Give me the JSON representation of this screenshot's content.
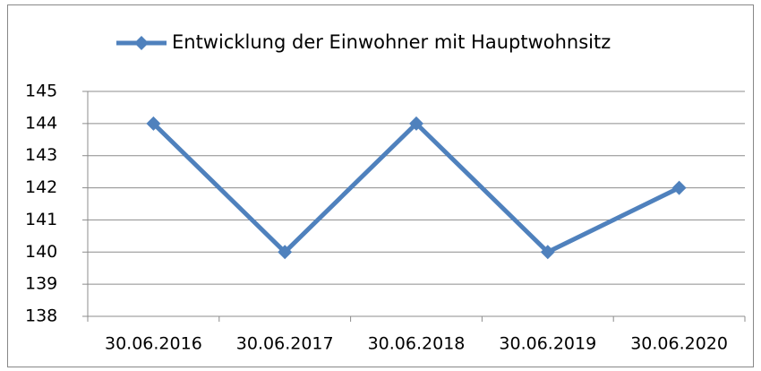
{
  "chart_data": {
    "type": "line",
    "categories": [
      "30.06.2016",
      "30.06.2017",
      "30.06.2018",
      "30.06.2019",
      "30.06.2020"
    ],
    "series": [
      {
        "name": "Entwicklung der Einwohner mit Hauptwohnsitz",
        "color": "#4f81bd",
        "values": [
          144,
          140,
          144,
          140,
          142
        ]
      }
    ],
    "ylim": [
      138,
      145
    ],
    "yticks": [
      138,
      139,
      140,
      141,
      142,
      143,
      144,
      145
    ],
    "grid": true,
    "legend": "top"
  }
}
